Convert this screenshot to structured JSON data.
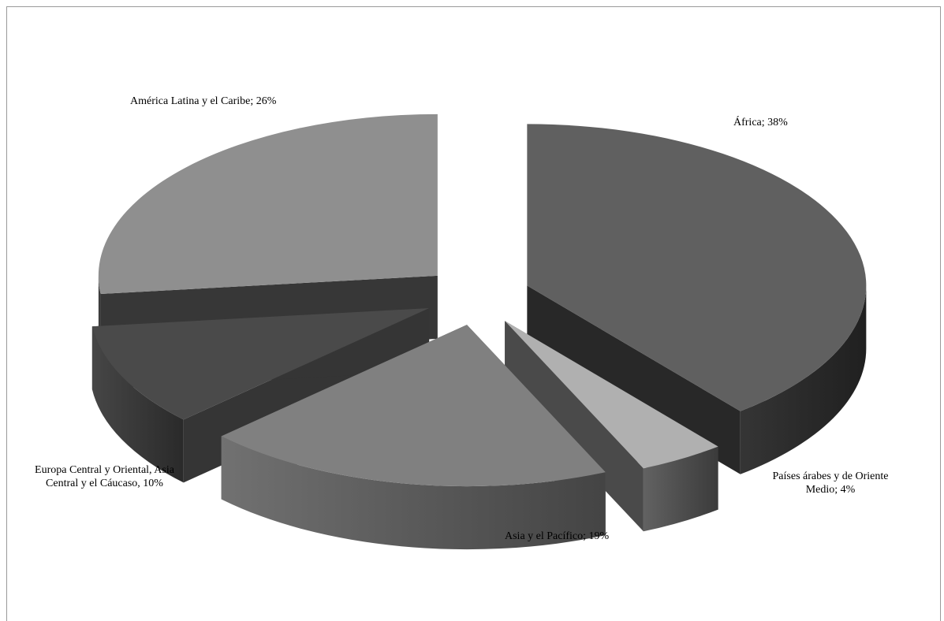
{
  "chart_data": {
    "type": "pie",
    "style": "3d-exploded",
    "slices": [
      {
        "category": "África",
        "value": 38,
        "label": "África; 38%",
        "top_color": "#606060",
        "side_color": "#2a2a2a"
      },
      {
        "category": "Países árabes y de Oriente Medio",
        "value": 4,
        "label": "Países árabes y de Oriente Medio; 4%",
        "label_lines": [
          "Países árabes y de Oriente",
          "Medio; 4%"
        ],
        "top_color": "#b0b0b0",
        "side_color": "#4e4e4e"
      },
      {
        "category": "Asia y el Pacífico",
        "value": 19,
        "label": "Asia y el Pacífico; 19%",
        "top_color": "#808080",
        "side_color": "#5a5a5a"
      },
      {
        "category": "Europa Central y Oriental, Asia Central y el Cáucaso",
        "value": 10,
        "label": "Europa Central y Oriental, Asia Central y el Cáucaso; 10%",
        "label_lines": [
          "Europa Central y Oriental, Asia",
          "Central y el Cáucaso, 10%"
        ],
        "top_color": "#4a4a4a",
        "side_color": "#383838"
      },
      {
        "category": "América Latina y el Caribe",
        "value": 26,
        "label": "América Latina y el Caribe; 26%",
        "top_color": "#8f8f8f",
        "side_color": "#3a3a3a"
      }
    ],
    "legend": "none"
  }
}
